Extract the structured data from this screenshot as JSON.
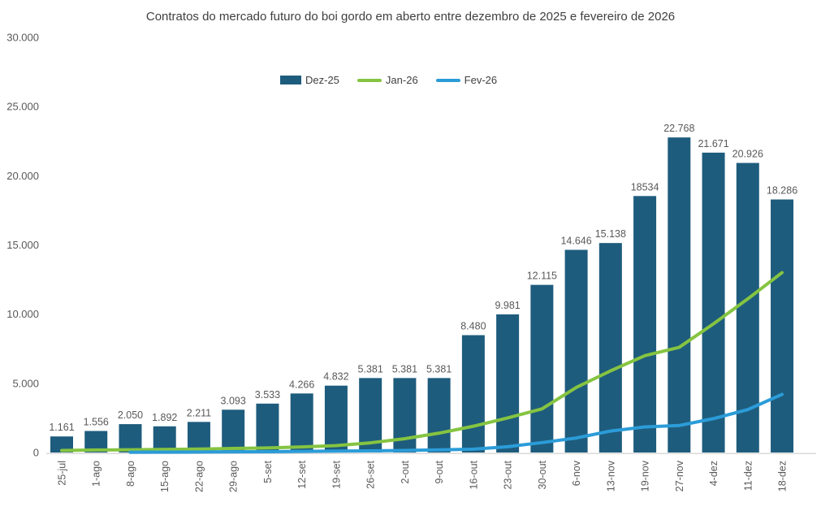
{
  "title": "Contratos do mercado futuro do boi gordo em aberto entre dezembro de 2025 e fevereiro de 2026",
  "colors": {
    "bar": "#1E5C7D",
    "line_jan": "#85C441",
    "line_fev": "#2B9CD8",
    "axis_text": "#595959",
    "title_text": "#404040",
    "legend_text": "#404040",
    "axis_line": "#D9D9D9"
  },
  "chart_data": {
    "type": "bar",
    "title": "Contratos do mercado futuro do boi gordo em aberto entre dezembro de 2025 e fevereiro de 2026",
    "categories": [
      "25-jul",
      "1-ago",
      "8-ago",
      "15-ago",
      "22-ago",
      "29-ago",
      "5-set",
      "12-set",
      "19-set",
      "26-set",
      "2-out",
      "9-out",
      "16-out",
      "23-out",
      "30-out",
      "6-nov",
      "13-nov",
      "19-nov",
      "27-nov",
      "4-dez",
      "11-dez",
      "18-dez"
    ],
    "series": [
      {
        "name": "Dez-25",
        "type": "bar",
        "color": "#1E5C7D",
        "values": [
          1161,
          1556,
          2050,
          1892,
          2211,
          3093,
          3533,
          4266,
          4832,
          5381,
          5381,
          5381,
          8480,
          9981,
          12115,
          14646,
          15138,
          18534,
          22768,
          21671,
          20926,
          18286
        ],
        "labels": [
          "1.161",
          "1.556",
          "2.050",
          "1.892",
          "2.211",
          "3.093",
          "3.533",
          "4.266",
          "4.832",
          "5.381",
          "5.381",
          "5.381",
          "8.480",
          "9.981",
          "12.115",
          "14.646",
          "15.138",
          "18534",
          "22.768",
          "21.671",
          "20.926",
          "18.286"
        ]
      },
      {
        "name": "Jan-26",
        "type": "line",
        "color": "#85C441",
        "values": [
          150,
          180,
          200,
          220,
          250,
          290,
          330,
          400,
          500,
          700,
          1000,
          1400,
          1900,
          2500,
          3150,
          4700,
          5900,
          7000,
          7600,
          9300,
          11100,
          13000
        ]
      },
      {
        "name": "Fev-26",
        "type": "line",
        "color": "#2B9CD8",
        "values": [
          null,
          null,
          20,
          30,
          40,
          50,
          60,
          80,
          100,
          120,
          150,
          190,
          240,
          420,
          715,
          1050,
          1550,
          1850,
          1950,
          2450,
          3100,
          4200
        ]
      }
    ],
    "y_axis": {
      "min": 0,
      "max": 30000,
      "tick_labels": [
        "0",
        "5.000",
        "10.000",
        "15.000",
        "20.000",
        "25.000",
        "30.000"
      ]
    },
    "x_axis_label": "",
    "y_axis_label": "",
    "legend_position": "top-center",
    "gridlines": false,
    "data_labels": true
  }
}
